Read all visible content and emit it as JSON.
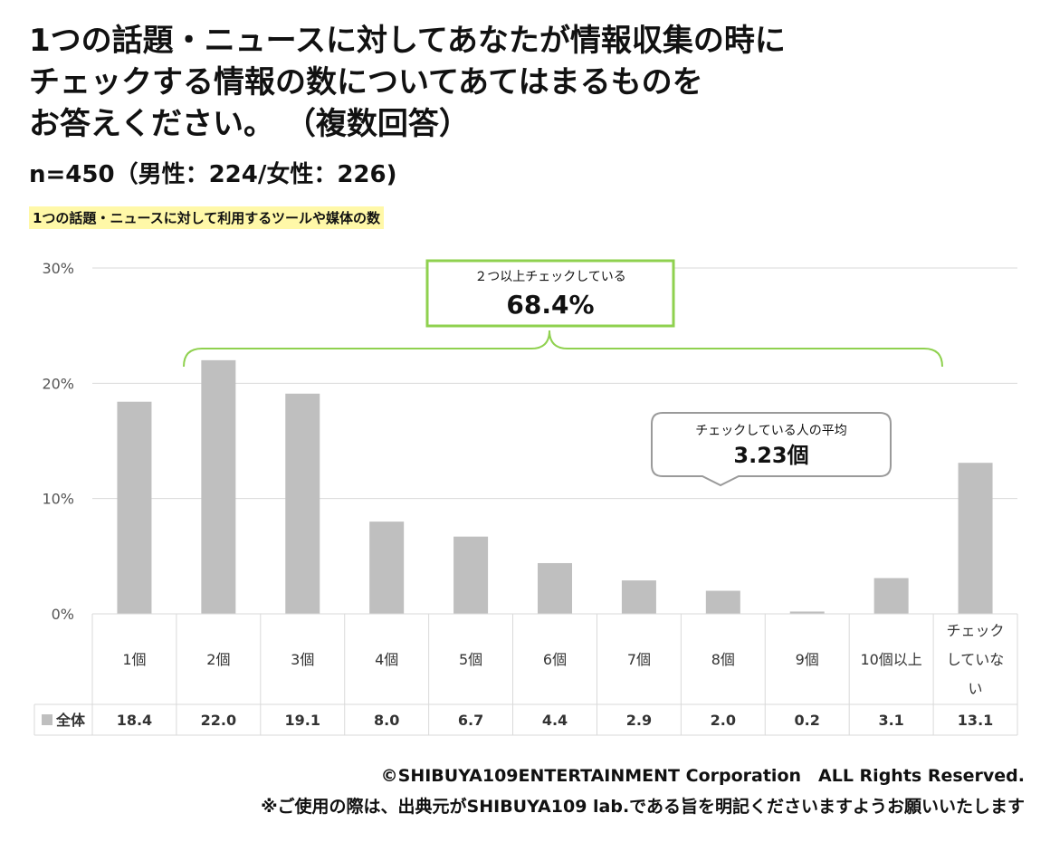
{
  "title_lines": [
    "1つの話題・ニュースに対してあなたが情報収集の時に",
    "チェックする情報の数についてあてはまるものを",
    "お答えください。 （複数回答）"
  ],
  "sample": "n=450（男性：224/女性：226)",
  "subtitle": "1つの話題・ニュースに対して利用するツールや媒体の数",
  "callout_top": {
    "label": "２つ以上チェックしている",
    "value": "68.4%"
  },
  "callout_avg": {
    "label": "チェックしている人の平均",
    "value": "3.23個"
  },
  "footer": {
    "copyright": "©SHIBUYA109ENTERTAINMENT Corporation　ALL Rights Reserved.",
    "note": "※ご使用の際は、出典元がSHIBUYA109 lab.である旨を明記くださいますようお願いいたします"
  },
  "colors": {
    "bar": "#bfbfbf",
    "grid": "#d9d9d9",
    "callout_green": "#8fd14f",
    "callout_gray": "#9a9a9a",
    "highlight": "#fff8a8"
  },
  "chart_data": {
    "type": "bar",
    "categories": [
      "1個",
      "2個",
      "3個",
      "4個",
      "5個",
      "6個",
      "7個",
      "8個",
      "9個",
      "10個以上",
      "チェックしていない"
    ],
    "category_lines": [
      [
        "1個"
      ],
      [
        "2個"
      ],
      [
        "3個"
      ],
      [
        "4個"
      ],
      [
        "5個"
      ],
      [
        "6個"
      ],
      [
        "7個"
      ],
      [
        "8個"
      ],
      [
        "9個"
      ],
      [
        "10個以上"
      ],
      [
        "チェック",
        "していな",
        "い"
      ]
    ],
    "series": [
      {
        "name": "全体",
        "values": [
          18.4,
          22.0,
          19.1,
          8.0,
          6.7,
          4.4,
          2.9,
          2.0,
          0.2,
          3.1,
          13.1
        ]
      }
    ],
    "value_labels": [
      "18.4",
      "22.0",
      "19.1",
      "8.0",
      "6.7",
      "4.4",
      "2.9",
      "2.0",
      "0.2",
      "3.1",
      "13.1"
    ],
    "yticks": [
      "0%",
      "10%",
      "20%",
      "30%"
    ],
    "ytick_values": [
      0,
      10,
      20,
      30
    ],
    "ylim": [
      0,
      30
    ],
    "grid": true,
    "legend": "data-table"
  }
}
